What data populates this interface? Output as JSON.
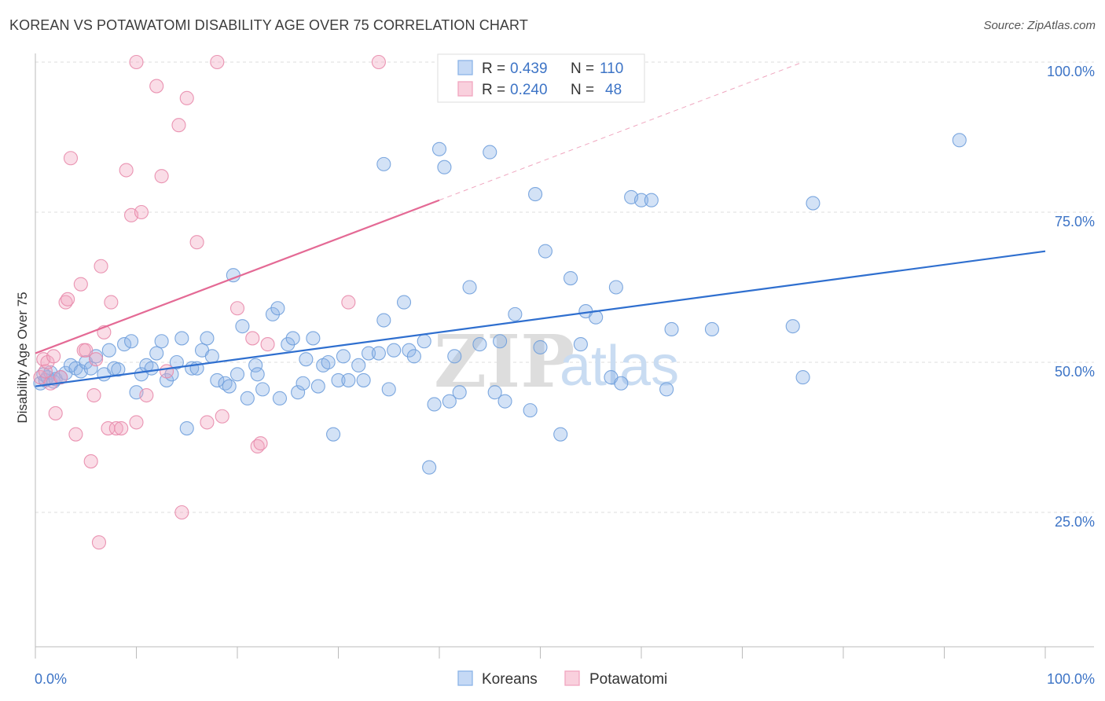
{
  "title": "KOREAN VS POTAWATOMI DISABILITY AGE OVER 75 CORRELATION CHART",
  "source": "Source: ZipAtlas.com",
  "watermark": {
    "zip": "ZIP",
    "atlas": "atlas"
  },
  "chart_data": {
    "type": "scatter",
    "xlabel": "",
    "ylabel": "Disability Age Over 75",
    "xlim": [
      0,
      100
    ],
    "ylim": [
      0,
      105
    ],
    "x_tick_labels": [
      {
        "value": 0,
        "label": "0.0%"
      },
      {
        "value": 100,
        "label": "100.0%"
      }
    ],
    "y_tick_labels": [
      {
        "value": 25,
        "label": "25.0%"
      },
      {
        "value": 50,
        "label": "50.0%"
      },
      {
        "value": 75,
        "label": "75.0%"
      },
      {
        "value": 100,
        "label": "100.0%"
      }
    ],
    "grid": true,
    "legend": {
      "position": "top-center",
      "entries": [
        {
          "series": "Koreans",
          "r_label": "R =",
          "r_value": "0.439",
          "n_label": "N =",
          "n_value": "110",
          "color": "#8bb4e8"
        },
        {
          "series": "Potawatomi",
          "r_label": "R =",
          "r_value": "0.240",
          "n_label": "N =",
          "n_value": "48",
          "color": "#f2a6bf"
        }
      ]
    },
    "bottom_legend": [
      "Koreans",
      "Potawatomi"
    ],
    "series": [
      {
        "name": "Koreans",
        "color": "#8bb4e8",
        "stroke": "#6f9fdc",
        "trend": {
          "x0": 0,
          "y0": 46.0,
          "x1": 100,
          "y1": 68.5,
          "color": "#2f6fcf"
        },
        "points": [
          [
            0.5,
            46.5
          ],
          [
            0.8,
            48
          ],
          [
            1,
            47
          ],
          [
            1.2,
            47.5
          ],
          [
            1.5,
            48.3
          ],
          [
            1.8,
            46.8
          ],
          [
            2,
            47.2
          ],
          [
            2.5,
            47.5
          ],
          [
            3,
            48.2
          ],
          [
            3.5,
            49.5
          ],
          [
            4,
            49
          ],
          [
            4.5,
            48.5
          ],
          [
            5,
            50
          ],
          [
            5.5,
            49
          ],
          [
            6,
            51
          ],
          [
            6.8,
            48
          ],
          [
            7.3,
            52
          ],
          [
            7.8,
            49
          ],
          [
            8.2,
            48.8
          ],
          [
            8.8,
            53
          ],
          [
            9.5,
            53.5
          ],
          [
            10,
            45
          ],
          [
            10.5,
            48
          ],
          [
            11,
            49.5
          ],
          [
            11.5,
            49
          ],
          [
            12,
            51.5
          ],
          [
            12.5,
            53.5
          ],
          [
            13,
            47
          ],
          [
            13.5,
            48
          ],
          [
            14,
            50
          ],
          [
            14.5,
            54
          ],
          [
            15,
            39
          ],
          [
            15.5,
            49
          ],
          [
            16,
            49
          ],
          [
            16.5,
            52
          ],
          [
            17,
            54
          ],
          [
            17.5,
            51
          ],
          [
            18,
            47
          ],
          [
            18.8,
            46.5
          ],
          [
            19.2,
            46
          ],
          [
            19.6,
            64.5
          ],
          [
            20,
            48
          ],
          [
            20.5,
            56
          ],
          [
            21,
            44
          ],
          [
            21.8,
            49.5
          ],
          [
            22,
            48
          ],
          [
            22.5,
            45.5
          ],
          [
            23.5,
            58
          ],
          [
            24,
            59
          ],
          [
            24.2,
            44
          ],
          [
            25,
            53
          ],
          [
            25.5,
            54
          ],
          [
            26,
            45
          ],
          [
            26.5,
            46.5
          ],
          [
            26.8,
            50.5
          ],
          [
            27.5,
            54
          ],
          [
            28,
            46
          ],
          [
            28.5,
            49.5
          ],
          [
            29,
            50
          ],
          [
            29.5,
            38
          ],
          [
            30,
            47
          ],
          [
            30.5,
            51
          ],
          [
            31,
            47
          ],
          [
            32,
            49.5
          ],
          [
            32.5,
            47
          ],
          [
            33,
            51.5
          ],
          [
            34,
            51.5
          ],
          [
            34.5,
            57
          ],
          [
            35,
            45.5
          ],
          [
            34.5,
            83
          ],
          [
            35.5,
            52
          ],
          [
            36.5,
            60
          ],
          [
            37,
            52
          ],
          [
            37.5,
            51
          ],
          [
            38.5,
            53.5
          ],
          [
            39,
            32.5
          ],
          [
            39.5,
            43
          ],
          [
            40,
            85.5
          ],
          [
            40.5,
            82.5
          ],
          [
            41,
            43.5
          ],
          [
            41.5,
            51
          ],
          [
            42,
            45
          ],
          [
            43,
            62.5
          ],
          [
            44,
            53
          ],
          [
            45,
            85
          ],
          [
            45.5,
            45
          ],
          [
            46,
            53.5
          ],
          [
            46.5,
            43.5
          ],
          [
            47.5,
            58
          ],
          [
            49,
            42
          ],
          [
            49.5,
            78
          ],
          [
            50,
            52.5
          ],
          [
            50.5,
            68.5
          ],
          [
            52,
            38
          ],
          [
            53,
            64
          ],
          [
            54,
            53
          ],
          [
            54.5,
            58.5
          ],
          [
            55.5,
            57.5
          ],
          [
            57,
            47.5
          ],
          [
            57.5,
            62.5
          ],
          [
            58,
            46.5
          ],
          [
            59,
            77.5
          ],
          [
            60,
            77
          ],
          [
            61,
            77
          ],
          [
            62.5,
            45.5
          ],
          [
            63,
            55.5
          ],
          [
            67,
            55.5
          ],
          [
            75,
            56
          ],
          [
            76,
            47.5
          ],
          [
            77,
            76.5
          ],
          [
            91.5,
            87
          ]
        ]
      },
      {
        "name": "Potawatomi",
        "color": "#f2a6bf",
        "stroke": "#e88aab",
        "trend": {
          "x0": 0,
          "y0": 51.5,
          "x1": 40,
          "y1": 77,
          "x_ext": 76,
          "y_ext": 100,
          "color": "#e46a95"
        },
        "points": [
          [
            0.5,
            47.5
          ],
          [
            0.8,
            50.5
          ],
          [
            1,
            48.5
          ],
          [
            1.2,
            50
          ],
          [
            1.5,
            46.5
          ],
          [
            1.8,
            51
          ],
          [
            2,
            41.5
          ],
          [
            2.5,
            47.5
          ],
          [
            3,
            60
          ],
          [
            3.2,
            60.5
          ],
          [
            3.5,
            84
          ],
          [
            4,
            38
          ],
          [
            4.5,
            63
          ],
          [
            4.8,
            52
          ],
          [
            5,
            52
          ],
          [
            5.5,
            33.5
          ],
          [
            5.8,
            44.5
          ],
          [
            6,
            50.5
          ],
          [
            6.5,
            66
          ],
          [
            6.8,
            55
          ],
          [
            7.2,
            39
          ],
          [
            7.5,
            60
          ],
          [
            8,
            39
          ],
          [
            8.5,
            39
          ],
          [
            9,
            82
          ],
          [
            9.5,
            74.5
          ],
          [
            10,
            40
          ],
          [
            10.5,
            75
          ],
          [
            11,
            44.5
          ],
          [
            12,
            96
          ],
          [
            12.5,
            81
          ],
          [
            13,
            48.5
          ],
          [
            14.2,
            89.5
          ],
          [
            14.5,
            25
          ],
          [
            15,
            94
          ],
          [
            16,
            70
          ],
          [
            17,
            40
          ],
          [
            18,
            100
          ],
          [
            18.5,
            41
          ],
          [
            20,
            59
          ],
          [
            21.5,
            54
          ],
          [
            22,
            36
          ],
          [
            22.3,
            36.5
          ],
          [
            23,
            53
          ],
          [
            31,
            60
          ],
          [
            34,
            100
          ],
          [
            6.3,
            20
          ],
          [
            10,
            100
          ]
        ]
      }
    ]
  }
}
